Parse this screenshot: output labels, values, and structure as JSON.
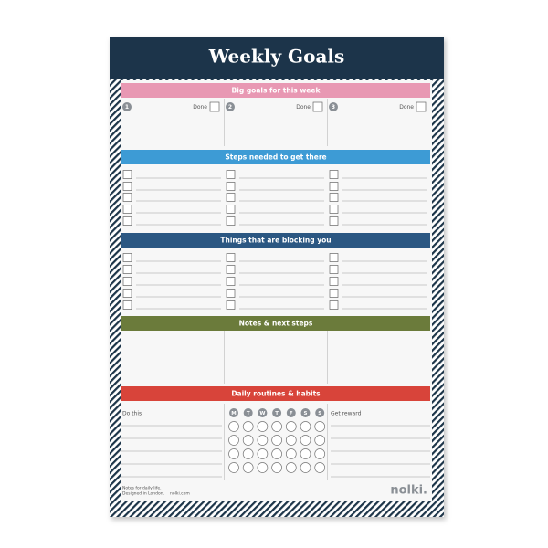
{
  "header": {
    "title": "Weekly Goals"
  },
  "sections": [
    {
      "title": "Big goals for this week",
      "color": "#e898b3"
    },
    {
      "title": "Steps needed to get there",
      "color": "#3d9bd5"
    },
    {
      "title": "Things that are blocking you",
      "color": "#2b5782"
    },
    {
      "title": "Notes & next steps",
      "color": "#6b7b3b"
    },
    {
      "title": "Daily routines & habits",
      "color": "#d8443a"
    }
  ],
  "goals": [
    {
      "number": "1",
      "done_label": "Done"
    },
    {
      "number": "2",
      "done_label": "Done"
    },
    {
      "number": "3",
      "done_label": "Done"
    }
  ],
  "habits": {
    "left_label": "Do this",
    "days": [
      "M",
      "T",
      "W",
      "T",
      "F",
      "S",
      "S"
    ],
    "right_label": "Get reward"
  },
  "footer": {
    "tagline_lines": [
      "Notes for daily life.",
      "Designed in London."
    ],
    "url": "nolki.com",
    "brand": "nolki."
  }
}
